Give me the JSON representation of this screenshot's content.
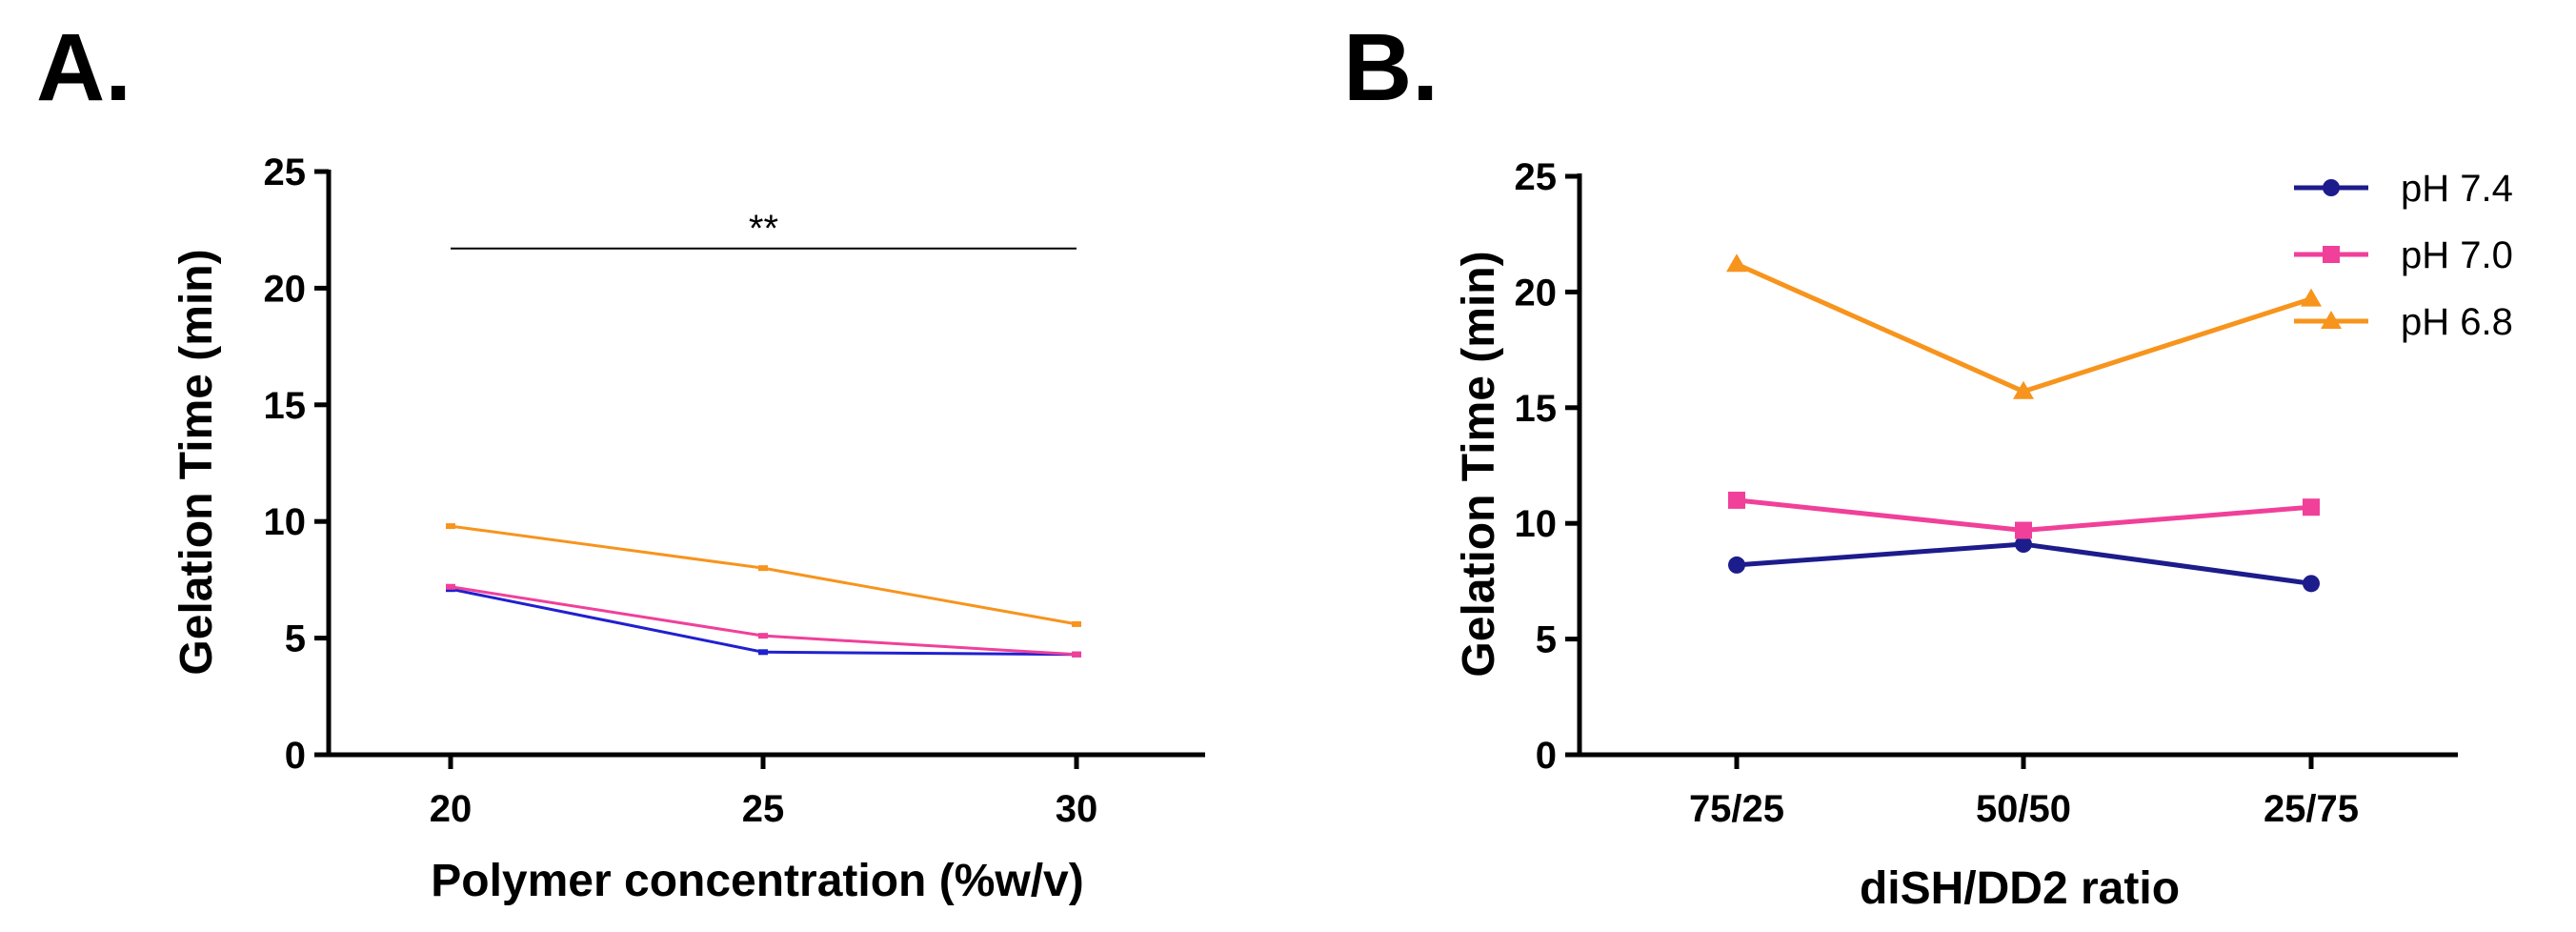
{
  "chart_data": [
    {
      "panel_label": "A.",
      "type": "line",
      "title": "",
      "xlabel": "Polymer concentration (%w/v)",
      "ylabel": "Gelation Time (min)",
      "categories": [
        "20",
        "25",
        "30"
      ],
      "ylim": [
        0,
        25
      ],
      "yticks": [
        "0",
        "5",
        "10",
        "15",
        "20",
        "25"
      ],
      "series": [
        {
          "name": "pH 7.4",
          "color": "#2020d0",
          "values": [
            7.1,
            4.4,
            4.3
          ]
        },
        {
          "name": "pH 7.0",
          "color": "#f0409a",
          "values": [
            7.2,
            5.1,
            4.3
          ]
        },
        {
          "name": "pH 6.8",
          "color": "#f7941d",
          "values": [
            9.8,
            8.0,
            5.6
          ]
        }
      ],
      "annotation": {
        "text": "**",
        "y": 21.7,
        "from": "20",
        "to": "30"
      }
    },
    {
      "panel_label": "B.",
      "type": "line",
      "title": "",
      "xlabel": "diSH/DD2 ratio",
      "ylabel": "Gelation Time (min)",
      "categories": [
        "75/25",
        "50/50",
        "25/75"
      ],
      "ylim": [
        0,
        25
      ],
      "yticks": [
        "0",
        "5",
        "10",
        "15",
        "20",
        "25"
      ],
      "legend": "top-right",
      "series": [
        {
          "name": "pH 7.4",
          "color": "#1c1c8c",
          "marker": "circle",
          "values": [
            8.2,
            9.1,
            7.4
          ]
        },
        {
          "name": "pH 7.0",
          "color": "#f0409a",
          "marker": "square",
          "values": [
            11.0,
            9.7,
            10.7
          ]
        },
        {
          "name": "pH 6.8",
          "color": "#f7941d",
          "marker": "triangle",
          "values": [
            21.2,
            15.7,
            19.7
          ]
        }
      ]
    }
  ]
}
